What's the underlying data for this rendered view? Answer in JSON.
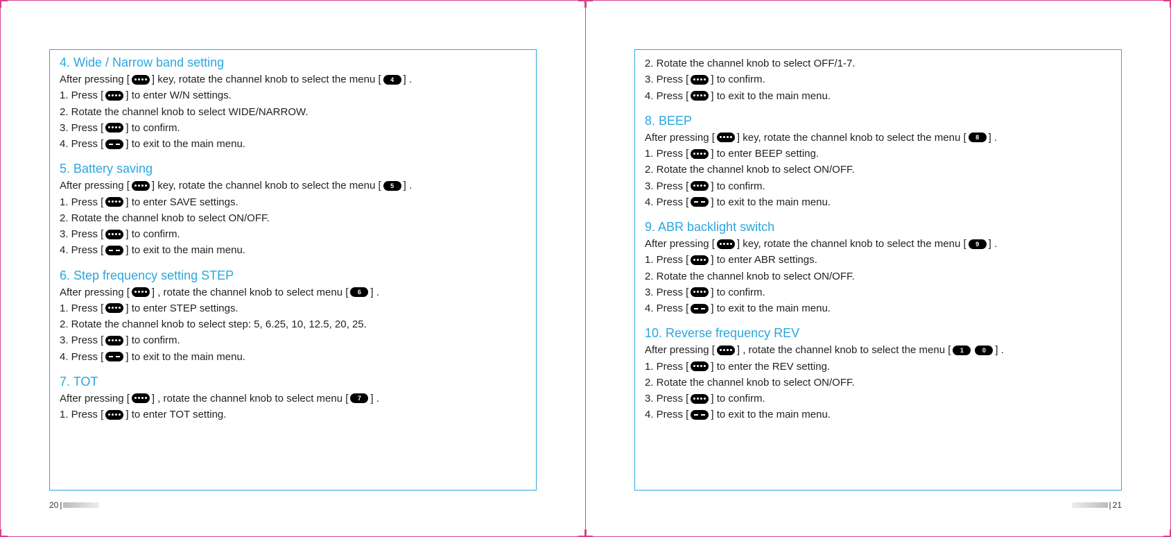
{
  "colors": {
    "border_outer": "#d6428b",
    "border_box": "#2aa6df",
    "heading": "#2aa6df",
    "text": "#222222",
    "key_bg": "#000000"
  },
  "left": {
    "page_num": "20",
    "sections": [
      {
        "title": "4. Wide / Narrow band setting",
        "lines": [
          [
            "After pressing [ ",
            {
              "k": "dots"
            },
            " ] key, rotate the channel knob to select the menu [ ",
            {
              "k": "num",
              "v": "4"
            },
            " ] ."
          ],
          [
            "1. Press [ ",
            {
              "k": "dots"
            },
            " ] to enter W/N settings."
          ],
          [
            "2. Rotate the channel knob to select WIDE/NARROW."
          ],
          [
            "3. Press [ ",
            {
              "k": "dots"
            },
            " ] to confirm."
          ],
          [
            "4. Press [ ",
            {
              "k": "dash"
            },
            " ] to exit to the main menu."
          ]
        ]
      },
      {
        "title": "5. Battery saving",
        "lines": [
          [
            "After pressing [ ",
            {
              "k": "dots"
            },
            " ] key, rotate the channel knob to select the menu [ ",
            {
              "k": "num",
              "v": "5"
            },
            " ] ."
          ],
          [
            "1. Press [ ",
            {
              "k": "dots"
            },
            " ] to enter SAVE settings."
          ],
          [
            "2. Rotate the channel knob to select ON/OFF."
          ],
          [
            "3. Press [ ",
            {
              "k": "dots"
            },
            " ] to confirm."
          ],
          [
            "4. Press [ ",
            {
              "k": "dash"
            },
            " ] to exit to the main menu."
          ]
        ]
      },
      {
        "title": "6. Step frequency setting STEP",
        "lines": [
          [
            "After pressing [ ",
            {
              "k": "dots"
            },
            " ] , rotate the channel knob to select menu [ ",
            {
              "k": "num",
              "v": "6"
            },
            " ] ."
          ],
          [
            "1. Press [ ",
            {
              "k": "dots"
            },
            " ] to enter STEP settings."
          ],
          [
            "2. Rotate the channel knob to select step: 5, 6.25, 10, 12.5, 20, 25."
          ],
          [
            "3. Press [ ",
            {
              "k": "dots"
            },
            " ] to confirm."
          ],
          [
            "4. Press [ ",
            {
              "k": "dash"
            },
            " ] to exit to the main menu."
          ]
        ]
      },
      {
        "title": "7. TOT",
        "lines": [
          [
            "After pressing [ ",
            {
              "k": "dots"
            },
            " ] , rotate the channel knob to select menu [ ",
            {
              "k": "num",
              "v": "7"
            },
            " ] ."
          ],
          [
            "1. Press [ ",
            {
              "k": "dots"
            },
            " ] to enter TOT setting."
          ]
        ]
      }
    ]
  },
  "right": {
    "page_num": "21",
    "intro_lines": [
      [
        "2. Rotate the channel knob to select OFF/1-7."
      ],
      [
        "3. Press [ ",
        {
          "k": "dots"
        },
        " ] to confirm."
      ],
      [
        "4. Press [ ",
        {
          "k": "dots"
        },
        " ] to exit to the main menu."
      ]
    ],
    "sections": [
      {
        "title": "8. BEEP",
        "lines": [
          [
            "After pressing [ ",
            {
              "k": "dots"
            },
            " ] key, rotate the channel knob to select the menu [ ",
            {
              "k": "num",
              "v": "8"
            },
            " ] ."
          ],
          [
            "1. Press [ ",
            {
              "k": "dots"
            },
            " ] to enter BEEP setting."
          ],
          [
            "2. Rotate the channel knob to select ON/OFF."
          ],
          [
            "3. Press [ ",
            {
              "k": "dots"
            },
            " ] to confirm."
          ],
          [
            "4. Press [ ",
            {
              "k": "dash"
            },
            " ] to exit to the main menu."
          ]
        ]
      },
      {
        "title": "9. ABR backlight switch",
        "lines": [
          [
            "After pressing [ ",
            {
              "k": "dots"
            },
            " ] key, rotate the channel knob to select the menu [ ",
            {
              "k": "num",
              "v": "9"
            },
            " ] ."
          ],
          [
            "1. Press [ ",
            {
              "k": "dots"
            },
            " ] to enter ABR settings."
          ],
          [
            "2. Rotate the channel knob to select ON/OFF."
          ],
          [
            "3. Press [ ",
            {
              "k": "dots"
            },
            " ] to confirm."
          ],
          [
            "4. Press [ ",
            {
              "k": "dash"
            },
            " ] to exit to the main menu."
          ]
        ]
      },
      {
        "title": "10. Reverse frequency REV",
        "lines": [
          [
            "After pressing [ ",
            {
              "k": "dots"
            },
            " ] , rotate the channel knob to select the menu [ ",
            {
              "k": "num",
              "v": "1"
            },
            {
              "k": "num",
              "v": "0"
            },
            " ] ."
          ],
          [
            "1. Press [ ",
            {
              "k": "dots"
            },
            " ] to enter the REV setting."
          ],
          [
            "2. Rotate the channel knob to select ON/OFF."
          ],
          [
            "3. Press [ ",
            {
              "k": "dots"
            },
            " ] to confirm."
          ],
          [
            "4. Press [ ",
            {
              "k": "dash"
            },
            " ] to exit to the main menu."
          ]
        ]
      }
    ]
  }
}
